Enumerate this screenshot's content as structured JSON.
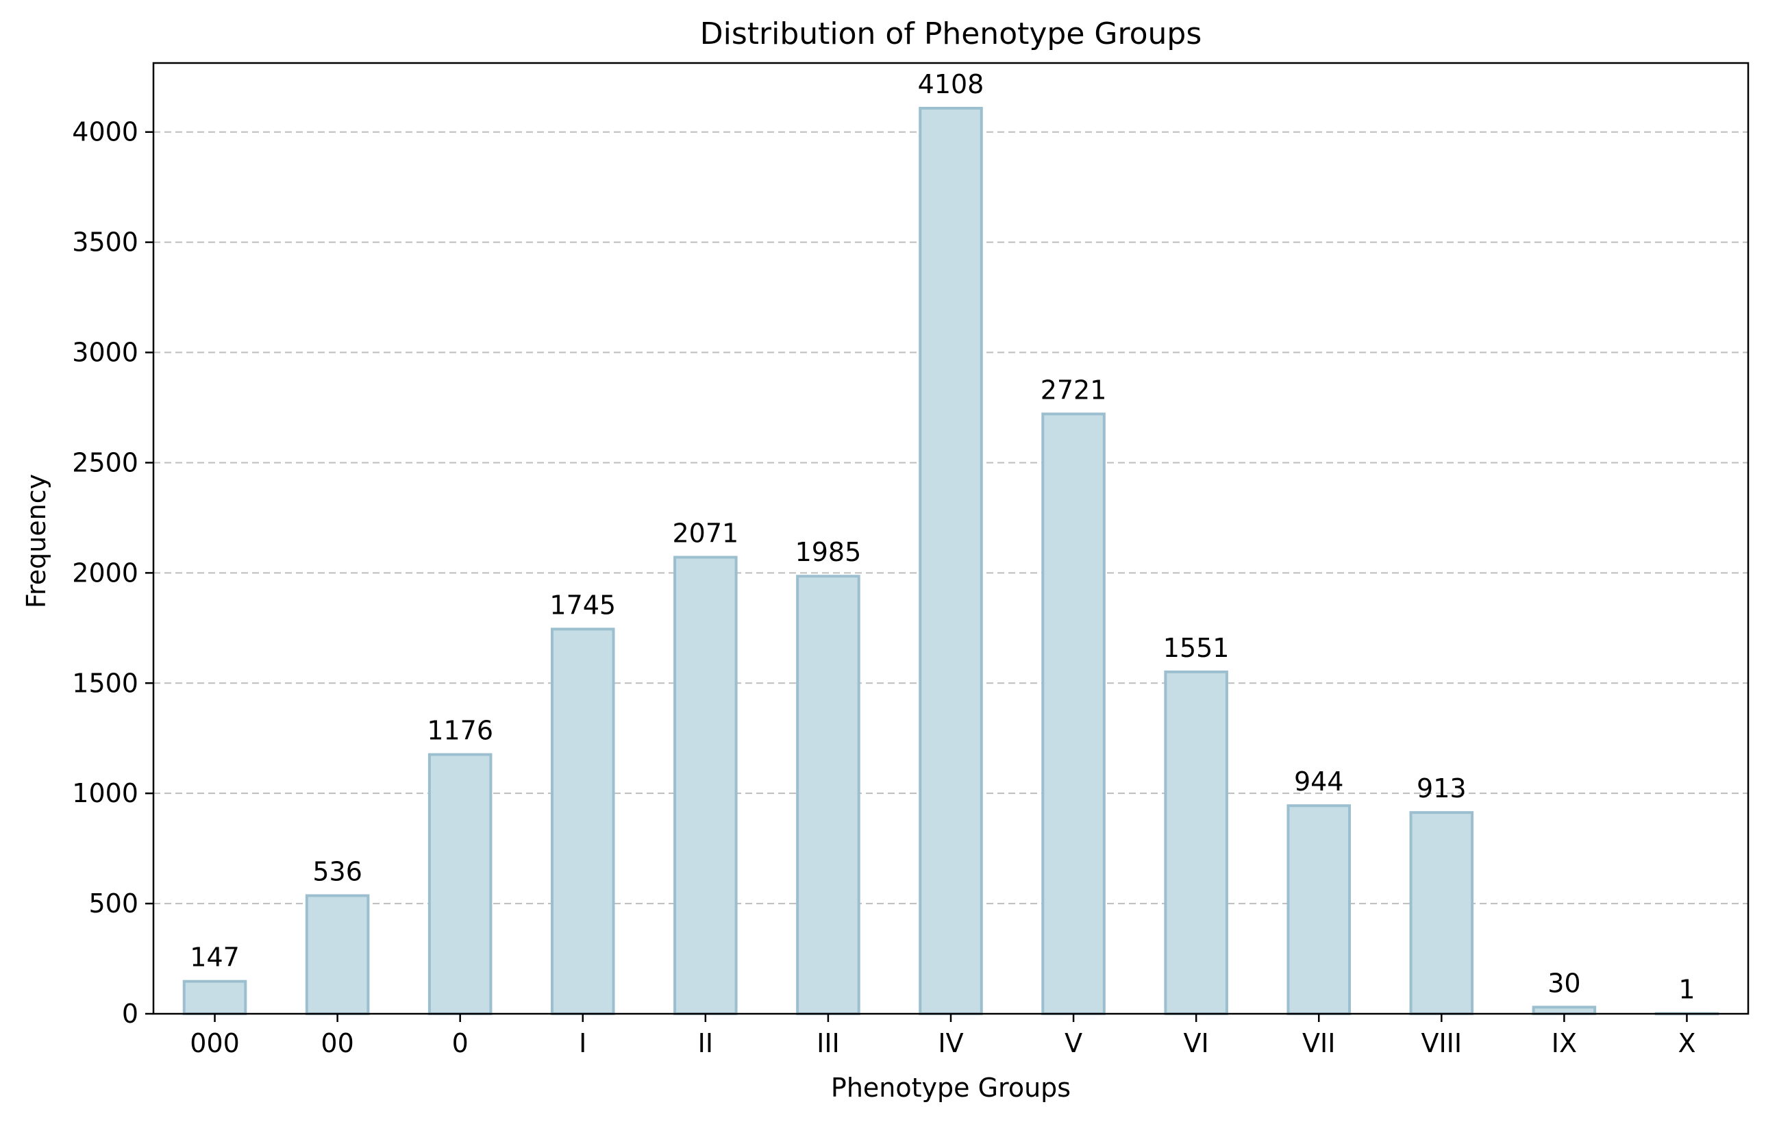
{
  "chart_data": {
    "type": "bar",
    "title": "Distribution of Phenotype Groups",
    "xlabel": "Phenotype Groups",
    "ylabel": "Frequency",
    "categories": [
      "000",
      "00",
      "0",
      "I",
      "II",
      "III",
      "IV",
      "V",
      "VI",
      "VII",
      "VIII",
      "IX",
      "X"
    ],
    "values": [
      147,
      536,
      1176,
      1745,
      2071,
      1985,
      4108,
      2721,
      1551,
      944,
      913,
      30,
      1
    ],
    "ylim": [
      0,
      4313
    ],
    "yticks": [
      0,
      500,
      1000,
      1500,
      2000,
      2500,
      3000,
      3500,
      4000
    ],
    "grid": "y-dashed",
    "legend": "none",
    "colors": {
      "bar_fill": "#c6dde5",
      "bar_edge": "#9cbfd0",
      "grid": "#bdbdbd",
      "axis": "#000000"
    }
  }
}
